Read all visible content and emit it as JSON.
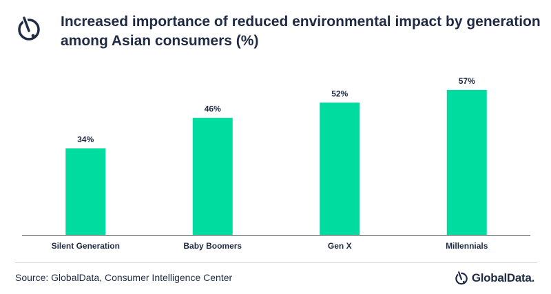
{
  "header": {
    "title": "Increased importance of reduced environmental impact by generation among Asian consumers (%)",
    "logo_icon": "globaldata-mark-icon"
  },
  "colors": {
    "bar": "#00dba0",
    "text": "#1f2a44",
    "axis": "#6b6b6b"
  },
  "chart_data": {
    "type": "bar",
    "title": "Increased importance of reduced environmental impact by generation among Asian consumers (%)",
    "categories": [
      "Silent Generation",
      "Baby Boomers",
      "Gen X",
      "Millennials"
    ],
    "values": [
      34,
      46,
      52,
      57
    ],
    "value_labels": [
      "34%",
      "46%",
      "52%",
      "57%"
    ],
    "xlabel": "",
    "ylabel": "",
    "ylim": [
      0,
      64
    ],
    "grid": false,
    "legend": "none"
  },
  "footer": {
    "source": "Source: GlobalData, Consumer Intelligence Center",
    "brand": "GlobalData.",
    "brand_icon": "globaldata-mark-icon"
  }
}
